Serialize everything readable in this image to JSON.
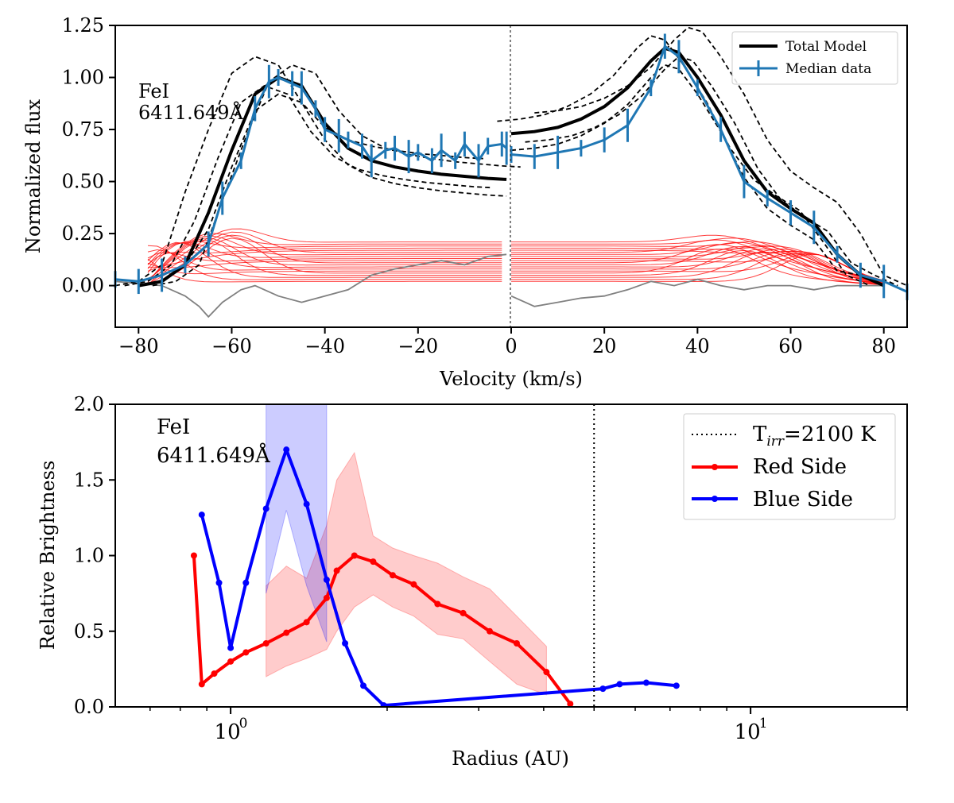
{
  "chart_data": [
    {
      "type": "line",
      "xlabel": "Velocity (km/s)",
      "ylabel": "Normalized flux",
      "xlim": [
        -85,
        85
      ],
      "ylim": [
        -0.2,
        1.25
      ],
      "xticks": [
        -80,
        -60,
        -40,
        -20,
        0,
        20,
        40,
        60,
        80
      ],
      "xtick_labels": [
        "−80",
        "−60",
        "−40",
        "−20",
        "0",
        "20",
        "40",
        "60",
        "80"
      ],
      "yticks": [
        0.0,
        0.25,
        0.5,
        0.75,
        1.0,
        1.25
      ],
      "ytick_labels": [
        "0.00",
        "0.25",
        "0.50",
        "0.75",
        "1.00",
        "1.25"
      ],
      "annotation": [
        "FeI",
        "6411.649Å"
      ],
      "legend": {
        "placement": "top-right",
        "entries": [
          "Total Model",
          "Median data"
        ]
      },
      "series": [
        {
          "name": "Total Model",
          "color": "#000000",
          "x": [
            -80,
            -75,
            -70,
            -65,
            -60,
            -55,
            -50,
            -45,
            -40,
            -35,
            -30,
            -25,
            -20,
            -15,
            -10,
            -5,
            -1
          ],
          "values": [
            0.0,
            0.02,
            0.1,
            0.35,
            0.65,
            0.92,
            1.0,
            0.96,
            0.78,
            0.66,
            0.6,
            0.57,
            0.55,
            0.535,
            0.525,
            0.515,
            0.51
          ],
          "x2": [
            0,
            5,
            10,
            15,
            20,
            25,
            30,
            33,
            36,
            40,
            45,
            50,
            55,
            60,
            65,
            70,
            75,
            80
          ],
          "values2": [
            0.73,
            0.74,
            0.76,
            0.8,
            0.86,
            0.95,
            1.08,
            1.14,
            1.12,
            1.0,
            0.82,
            0.6,
            0.45,
            0.37,
            0.3,
            0.15,
            0.05,
            0.0
          ]
        },
        {
          "name": "Median data",
          "color": "#1f77b4",
          "x": [
            -85,
            -80,
            -75,
            -70,
            -65,
            -62,
            -58,
            -55,
            -52,
            -50,
            -47,
            -45,
            -42,
            -40,
            -37,
            -35,
            -32,
            -30,
            -27,
            -25,
            -22,
            -20,
            -17,
            -15,
            -12,
            -10,
            -7,
            -5,
            -2,
            -1
          ],
          "values": [
            0.03,
            0.02,
            0.05,
            0.1,
            0.2,
            0.42,
            0.6,
            0.85,
            0.98,
            1.0,
            0.97,
            0.95,
            0.85,
            0.75,
            0.72,
            0.7,
            0.67,
            0.6,
            0.65,
            0.66,
            0.62,
            0.64,
            0.6,
            0.65,
            0.6,
            0.68,
            0.6,
            0.67,
            0.68,
            0.66
          ],
          "x2": [
            0,
            5,
            10,
            15,
            20,
            25,
            30,
            33,
            36,
            40,
            45,
            50,
            55,
            60,
            65,
            70,
            75,
            80,
            85
          ],
          "values2": [
            0.63,
            0.62,
            0.64,
            0.66,
            0.7,
            0.77,
            0.95,
            1.15,
            1.1,
            0.95,
            0.75,
            0.5,
            0.42,
            0.35,
            0.28,
            0.15,
            0.05,
            0.02,
            -0.03
          ]
        }
      ]
    },
    {
      "type": "line",
      "xscale": "log",
      "xlabel": "Radius (AU)",
      "ylabel": "Relative Brightness",
      "xlim": [
        0.6,
        20
      ],
      "ylim": [
        0.0,
        2.0
      ],
      "xtick_major": [
        {
          "value": 1,
          "base": "10",
          "exp": "0"
        },
        {
          "value": 10,
          "base": "10",
          "exp": "1"
        }
      ],
      "xtick_minor": [
        0.7,
        0.8,
        0.9,
        2,
        3,
        4,
        5,
        6,
        7,
        8,
        9,
        20
      ],
      "yticks": [
        0.0,
        0.5,
        1.0,
        1.5,
        2.0
      ],
      "ytick_labels": [
        "0.0",
        "0.5",
        "1.0",
        "1.5",
        "2.0"
      ],
      "annotation": [
        "FeI",
        "6411.649Å"
      ],
      "vline": {
        "x": 5.0,
        "label": "T",
        "label_sub": "irr",
        "label_rest": "=2100 K"
      },
      "legend": {
        "placement": "top-right"
      },
      "series": [
        {
          "name": "Red Side",
          "color": "#ff0000",
          "x": [
            0.85,
            0.88,
            0.93,
            1.0,
            1.07,
            1.17,
            1.28,
            1.4,
            1.53,
            1.6,
            1.73,
            1.88,
            2.05,
            2.25,
            2.5,
            2.8,
            3.15,
            3.55,
            4.05,
            4.5
          ],
          "values": [
            1.0,
            0.15,
            0.22,
            0.3,
            0.36,
            0.42,
            0.49,
            0.56,
            0.72,
            0.9,
            1.0,
            0.96,
            0.87,
            0.81,
            0.68,
            0.62,
            0.5,
            0.42,
            0.23,
            0.02
          ],
          "band_x": [
            1.17,
            1.28,
            1.4,
            1.53,
            1.6,
            1.73,
            1.88,
            2.05,
            2.25,
            2.5,
            2.8,
            3.15,
            3.55,
            4.05
          ],
          "band_low": [
            0.2,
            0.27,
            0.32,
            0.38,
            0.5,
            0.66,
            0.74,
            0.66,
            0.6,
            0.48,
            0.45,
            0.3,
            0.15,
            0.08
          ],
          "band_high": [
            0.8,
            0.93,
            0.85,
            1.2,
            1.5,
            1.68,
            1.13,
            1.05,
            1.0,
            0.95,
            0.86,
            0.78,
            0.6,
            0.4
          ]
        },
        {
          "name": "Blue Side",
          "color": "#0000ff",
          "x": [
            0.88,
            0.95,
            1.0,
            1.07,
            1.17,
            1.28,
            1.4,
            1.53,
            1.66,
            1.8,
            1.97,
            5.2,
            5.6,
            6.3,
            7.2
          ],
          "values": [
            1.27,
            0.82,
            0.39,
            0.82,
            1.31,
            1.7,
            1.34,
            0.84,
            0.42,
            0.14,
            0.01,
            0.12,
            0.15,
            0.16,
            0.14
          ],
          "band_x": [
            1.17,
            1.28,
            1.4,
            1.53
          ],
          "band_low": [
            0.75,
            1.3,
            0.8,
            0.43
          ],
          "band_high": [
            2.0,
            2.0,
            2.0,
            2.0
          ]
        }
      ]
    }
  ]
}
